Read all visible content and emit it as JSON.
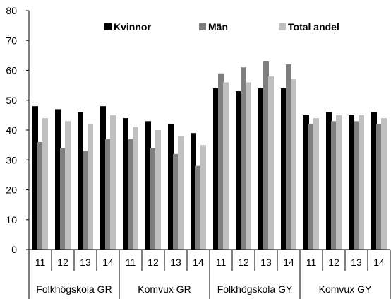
{
  "chart_data": {
    "type": "bar",
    "ylim": [
      0,
      80
    ],
    "yticks": [
      0,
      10,
      20,
      30,
      40,
      50,
      60,
      70,
      80
    ],
    "grid": false,
    "legend_position": "top",
    "groups": [
      {
        "label": "Folkhögskola GR",
        "categories": [
          "11",
          "12",
          "13",
          "14"
        ]
      },
      {
        "label": "Komvux GR",
        "categories": [
          "11",
          "12",
          "13",
          "14"
        ]
      },
      {
        "label": "Folkhögskola GY",
        "categories": [
          "11",
          "12",
          "13",
          "14"
        ]
      },
      {
        "label": "Komvux GY",
        "categories": [
          "11",
          "12",
          "13",
          "14"
        ]
      }
    ],
    "series": [
      {
        "name": "Kvinnor",
        "color": "#000000",
        "values": [
          48,
          47,
          46,
          48,
          44,
          43,
          42,
          39,
          54,
          53,
          54,
          54,
          45,
          46,
          45,
          46
        ]
      },
      {
        "name": "Män",
        "color": "#7f7f7f",
        "values": [
          36,
          34,
          33,
          37,
          37,
          34,
          32,
          28,
          59,
          61,
          63,
          62,
          42,
          43,
          43,
          42
        ]
      },
      {
        "name": "Total andel",
        "color": "#c0c0c0",
        "values": [
          44,
          43,
          42,
          45,
          41,
          40,
          38,
          35,
          56,
          56,
          58,
          57,
          44,
          45,
          45,
          44
        ]
      }
    ]
  }
}
